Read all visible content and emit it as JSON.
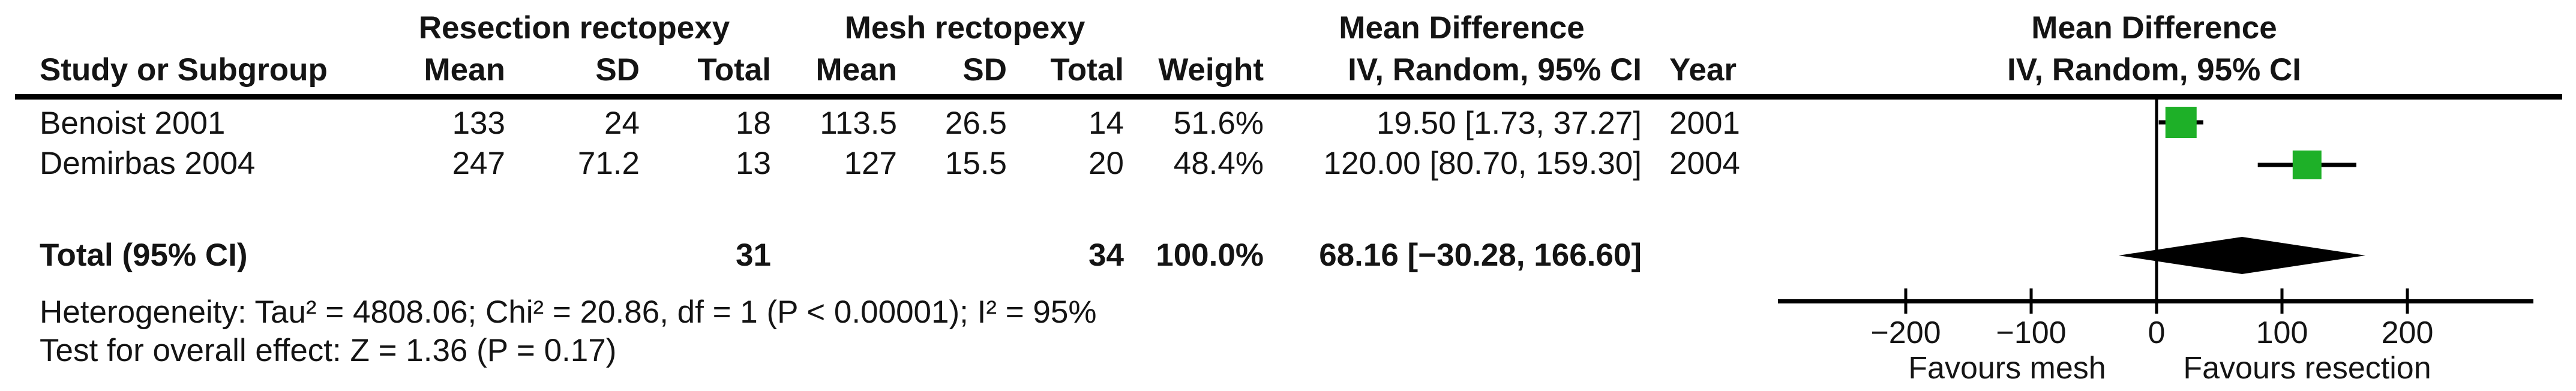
{
  "table": {
    "group_headers": {
      "experimental": "Resection rectopexy",
      "control": "Mesh rectopexy",
      "effect_table": "Mean Difference",
      "effect_plot": "Mean Difference"
    },
    "col_headers": {
      "study": "Study or Subgroup",
      "mean1": "Mean",
      "sd1": "SD",
      "total1": "Total",
      "mean2": "Mean",
      "sd2": "SD",
      "total2": "Total",
      "weight": "Weight",
      "ci_method": "IV, Random, 95% CI",
      "year": "Year",
      "ci_method_plot": "IV, Random, 95% CI"
    },
    "rows": [
      {
        "study": "Benoist 2001",
        "mean1": "133",
        "sd1": "24",
        "total1": "18",
        "mean2": "113.5",
        "sd2": "26.5",
        "total2": "14",
        "weight": "51.6%",
        "ci": "19.50 [1.73, 37.27]",
        "year": "2001"
      },
      {
        "study": "Demirbas 2004",
        "mean1": "247",
        "sd1": "71.2",
        "total1": "13",
        "mean2": "127",
        "sd2": "15.5",
        "total2": "20",
        "weight": "48.4%",
        "ci": "120.00 [80.70, 159.30]",
        "year": "2004"
      }
    ],
    "total_row": {
      "label": "Total (95% CI)",
      "total1": "31",
      "total2": "34",
      "weight": "100.0%",
      "ci": "68.16 [−30.28, 166.60]"
    },
    "footnotes": {
      "heterogeneity": "Heterogeneity: Tau² = 4808.06; Chi² = 20.86, df = 1 (P < 0.00001); I² = 95%",
      "overall_effect": "Test for overall effect: Z = 1.36 (P = 0.17)"
    }
  },
  "chart_data": {
    "type": "forest",
    "effect_measure": "Mean Difference",
    "method": "IV, Random, 95% CI",
    "studies": [
      {
        "name": "Benoist 2001",
        "md": 19.5,
        "ci_low": 1.73,
        "ci_high": 37.27,
        "weight_pct": 51.6,
        "year": "2001"
      },
      {
        "name": "Demirbas 2004",
        "md": 120.0,
        "ci_low": 80.7,
        "ci_high": 159.3,
        "weight_pct": 48.4,
        "year": "2004"
      }
    ],
    "total": {
      "label": "Total (95% CI)",
      "md": 68.16,
      "ci_low": -30.28,
      "ci_high": 166.6,
      "weight_pct": 100.0,
      "total_experimental": "31",
      "total_control": "34"
    },
    "axis": {
      "ticks": [
        -200,
        -100,
        0,
        100,
        200
      ],
      "tick_labels": [
        "−200",
        "−100",
        "0",
        "100",
        "200"
      ],
      "xlim": [
        -302,
        300
      ],
      "zero_line": true
    },
    "favours_left": "Favours mesh",
    "favours_right": "Favours resection",
    "marker_color": "#1eb028",
    "line_color": "#000000",
    "diamond_color": "#000000"
  }
}
